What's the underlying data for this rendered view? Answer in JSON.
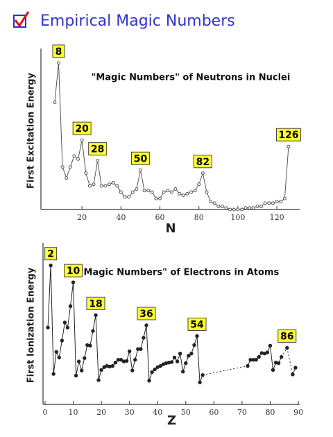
{
  "header": {
    "title": "Empirical Magic Numbers"
  },
  "chart_data": [
    {
      "type": "line",
      "title": "\"Magic Numbers\" of Neutrons in Nuclei",
      "x_label": "N",
      "y_label": "First Excitation Energy",
      "x": [
        6,
        8,
        10,
        12,
        14,
        16,
        18,
        20,
        22,
        24,
        26,
        28,
        30,
        32,
        34,
        36,
        38,
        40,
        42,
        44,
        46,
        48,
        50,
        52,
        54,
        56,
        58,
        60,
        62,
        64,
        66,
        68,
        70,
        72,
        74,
        76,
        78,
        80,
        82,
        84,
        86,
        88,
        90,
        92,
        94,
        96,
        98,
        100,
        102,
        104,
        106,
        108,
        110,
        112,
        114,
        116,
        118,
        120,
        122,
        124,
        126
      ],
      "values": [
        6.8,
        9.3,
        2.7,
        2.0,
        2.7,
        3.4,
        3.2,
        4.4,
        2.3,
        1.5,
        1.6,
        3.1,
        1.5,
        1.5,
        1.6,
        1.7,
        1.5,
        1.1,
        0.8,
        0.8,
        1.1,
        1.3,
        2.5,
        1.2,
        1.2,
        1.1,
        0.7,
        0.7,
        1.1,
        1.2,
        1.1,
        1.3,
        1.0,
        0.9,
        1.0,
        1.1,
        1.2,
        1.6,
        2.3,
        1.1,
        0.5,
        0.4,
        0.2,
        0.2,
        0.1,
        0,
        0,
        0,
        0,
        0.1,
        0.1,
        0.1,
        0.2,
        0.2,
        0.4,
        0.4,
        0.4,
        0.5,
        0.5,
        0.7,
        4.0
      ],
      "marker": "open",
      "color": "#555555",
      "xlim": [
        0,
        131
      ],
      "ylim": [
        0,
        10
      ],
      "xticks": [
        20,
        40,
        60,
        80,
        100,
        120
      ],
      "magic_numbers": [
        8,
        20,
        28,
        50,
        82,
        126
      ]
    },
    {
      "type": "line",
      "title": "\"Magic Numbers\" of Electrons in Atoms",
      "x_label": "Z",
      "y_label": "First Ionization Energy",
      "x": [
        1,
        2,
        3,
        4,
        5,
        6,
        7,
        8,
        9,
        10,
        11,
        12,
        13,
        14,
        15,
        16,
        17,
        18,
        19,
        20,
        21,
        22,
        23,
        24,
        25,
        26,
        27,
        28,
        29,
        30,
        31,
        32,
        33,
        34,
        35,
        36,
        37,
        38,
        39,
        40,
        41,
        42,
        43,
        44,
        45,
        46,
        47,
        48,
        49,
        50,
        51,
        52,
        53,
        54,
        55,
        56,
        57,
        58,
        59,
        60,
        61,
        62,
        63,
        64,
        65,
        66,
        67,
        68,
        69,
        70,
        71,
        72,
        73,
        74,
        75,
        76,
        77,
        78,
        79,
        80,
        81,
        82,
        83,
        84,
        85,
        86,
        87,
        88,
        89
      ],
      "values": [
        13.6,
        24.6,
        5.4,
        9.3,
        8.3,
        11.3,
        14.5,
        13.6,
        17.4,
        21.6,
        5.1,
        7.6,
        6.0,
        8.2,
        10.5,
        10.4,
        13.0,
        15.8,
        4.3,
        6.1,
        6.6,
        6.8,
        6.7,
        6.8,
        7.4,
        7.9,
        7.9,
        7.6,
        7.7,
        9.4,
        6.0,
        7.9,
        9.8,
        9.8,
        11.8,
        14.0,
        4.2,
        5.7,
        6.2,
        6.6,
        6.8,
        7.1,
        7.3,
        7.4,
        7.5,
        8.3,
        7.6,
        9.0,
        5.8,
        7.3,
        8.6,
        9.0,
        10.5,
        12.1,
        3.9,
        5.2,
        null,
        null,
        null,
        null,
        null,
        null,
        null,
        null,
        null,
        null,
        null,
        null,
        null,
        null,
        null,
        6.8,
        7.9,
        7.9,
        7.9,
        8.4,
        9.1,
        9.0,
        9.2,
        10.4,
        6.1,
        7.4,
        7.3,
        8.4,
        null,
        10.0,
        null,
        5.3,
        6.5
      ],
      "marker": "filled",
      "color": "#222222",
      "dashed_gaps": true,
      "xlim": [
        0,
        90
      ],
      "ylim": [
        0,
        28
      ],
      "xticks": [
        0,
        10,
        20,
        30,
        40,
        50,
        60,
        70,
        80,
        90
      ],
      "magic_numbers": [
        2,
        10,
        18,
        36,
        54,
        86
      ]
    }
  ]
}
